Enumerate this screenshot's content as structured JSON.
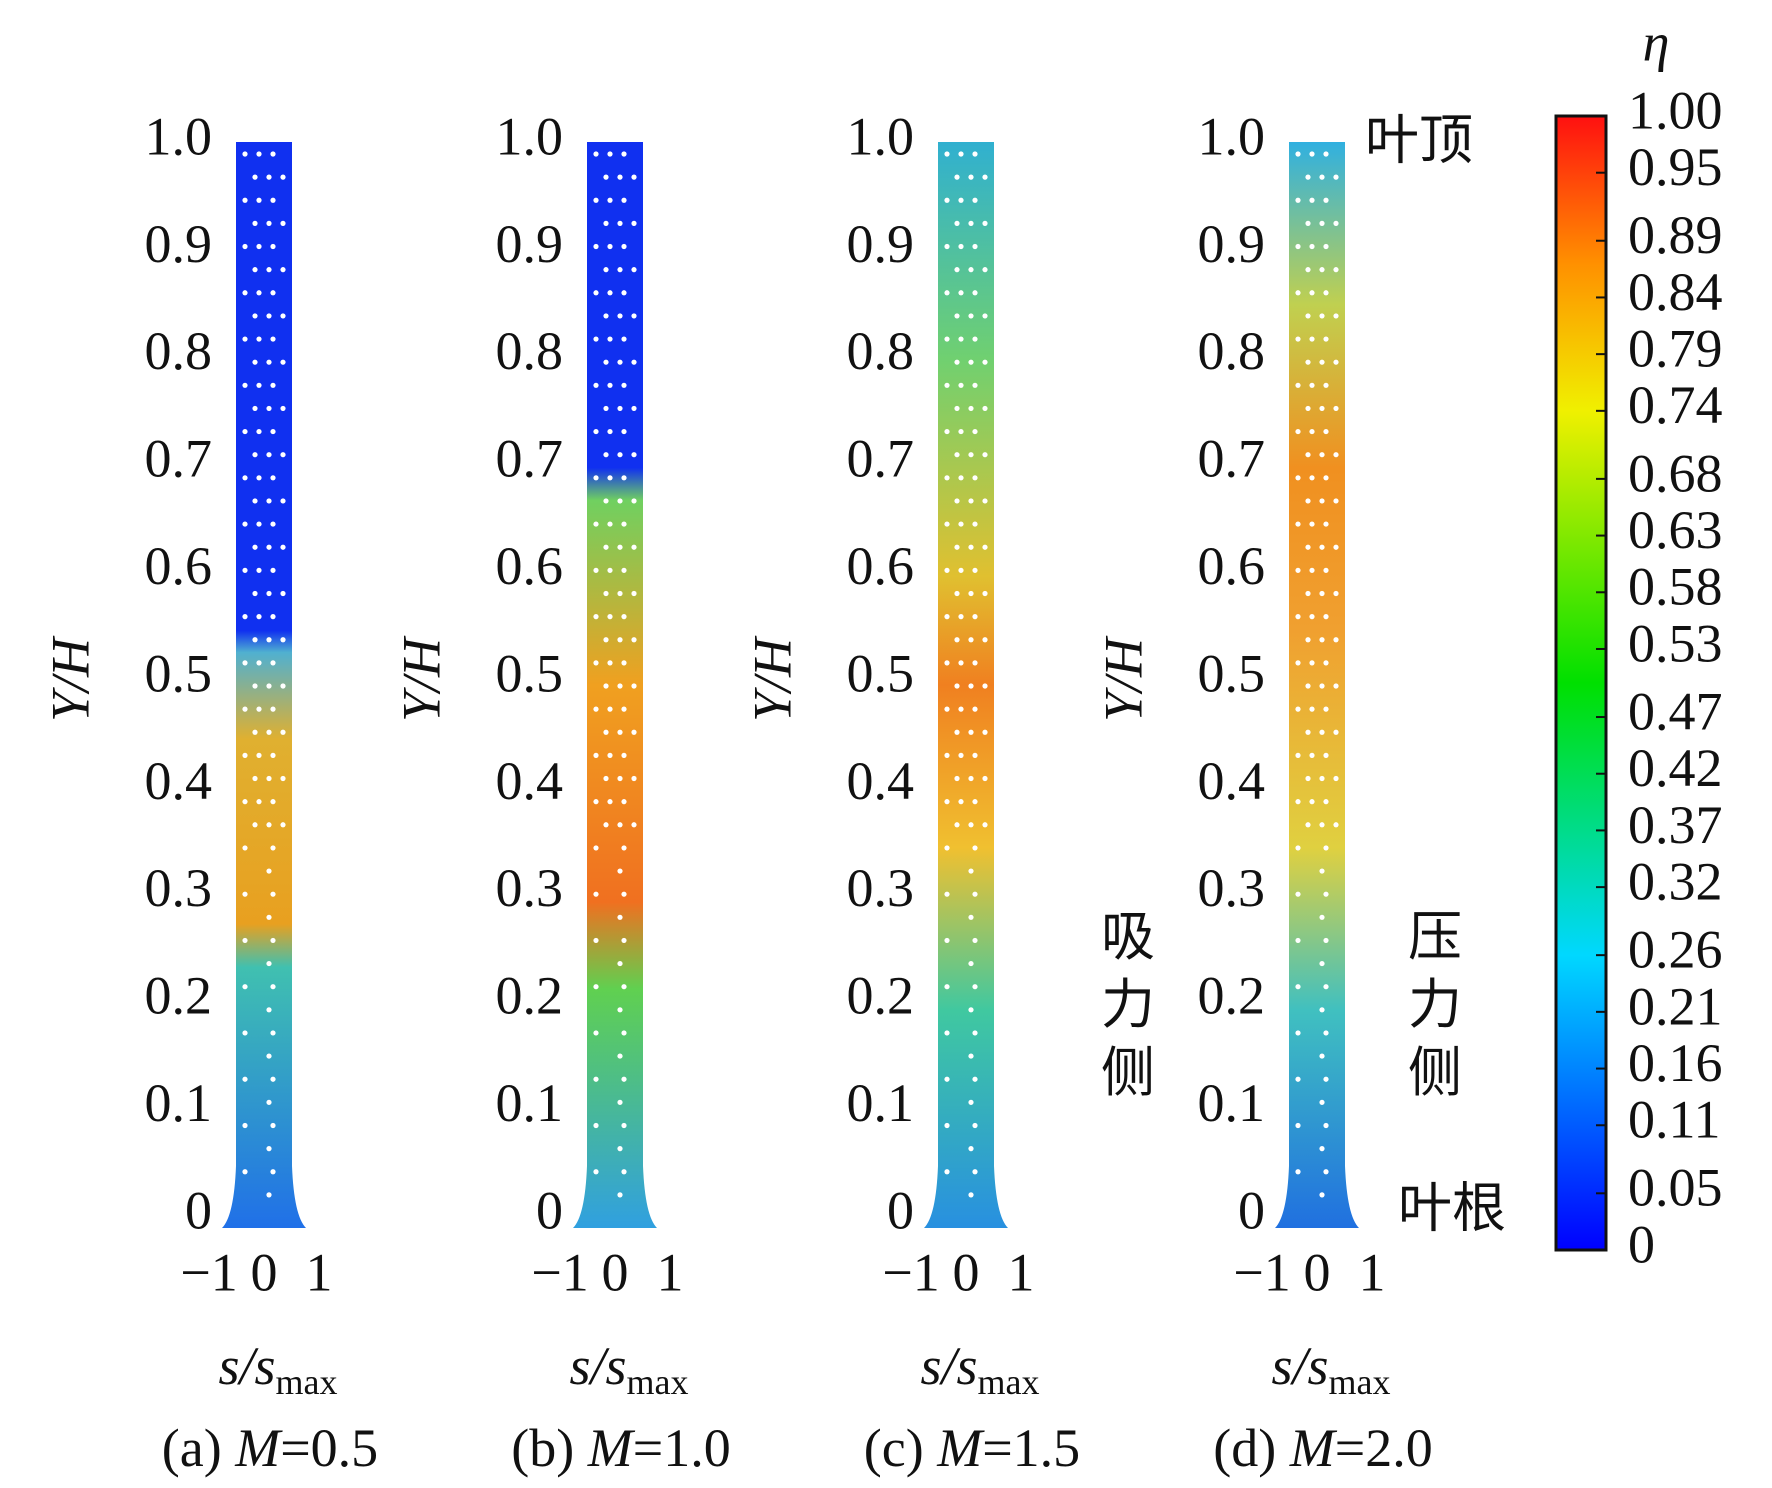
{
  "chart_data": [
    {
      "type": "contour",
      "caption": [
        "(a) ",
        "M",
        "=0.5"
      ],
      "xlabel": {
        "main": "s/s",
        "sub": "max"
      },
      "ylabel": "Y/H",
      "xlim": [
        -1,
        1
      ],
      "xticks": [
        {
          "value": -1,
          "label": "−1"
        },
        0,
        1
      ],
      "ylim": [
        0,
        1
      ],
      "yticks": [
        0,
        0.1,
        0.2,
        0.3,
        0.4,
        0.5,
        0.6,
        0.7,
        0.8,
        0.9,
        {
          "value": 1,
          "label": "1.0"
        }
      ]
    },
    {
      "type": "contour",
      "caption": [
        "(b) ",
        "M",
        "=1.0"
      ],
      "xlabel": {
        "main": "s/s",
        "sub": "max"
      },
      "ylabel": "Y/H",
      "xlim": [
        -1,
        1
      ],
      "xticks": [
        {
          "value": -1,
          "label": "−1"
        },
        0,
        1
      ],
      "ylim": [
        0,
        1
      ],
      "yticks": [
        0,
        0.1,
        0.2,
        0.3,
        0.4,
        0.5,
        0.6,
        0.7,
        0.8,
        0.9,
        {
          "value": 1,
          "label": "1.0"
        }
      ]
    },
    {
      "type": "contour",
      "caption": [
        "(c) ",
        "M",
        "=1.5"
      ],
      "xlabel": {
        "main": "s/s",
        "sub": "max"
      },
      "ylabel": "Y/H",
      "xlim": [
        -1,
        1
      ],
      "xticks": [
        {
          "value": -1,
          "label": "−1"
        },
        0,
        1
      ],
      "ylim": [
        0,
        1
      ],
      "yticks": [
        0,
        0.1,
        0.2,
        0.3,
        0.4,
        0.5,
        0.6,
        0.7,
        0.8,
        0.9,
        {
          "value": 1,
          "label": "1.0"
        }
      ]
    },
    {
      "type": "contour",
      "caption": [
        "(d) ",
        "M",
        "=2.0"
      ],
      "xlabel": {
        "main": "s/s",
        "sub": "max"
      },
      "ylabel": "Y/H",
      "xlim": [
        -1,
        1
      ],
      "xticks": [
        {
          "value": -1,
          "label": "−1"
        },
        0,
        1
      ],
      "ylim": [
        0,
        1
      ],
      "yticks": [
        0,
        0.1,
        0.2,
        0.3,
        0.4,
        0.5,
        0.6,
        0.7,
        0.8,
        0.9,
        {
          "value": 1,
          "label": "1.0"
        }
      ]
    },
    {
      "type": "colorbar",
      "label": "η",
      "colormap": "jet",
      "lim": [
        0,
        1
      ],
      "ticks": [
        0,
        0.05,
        0.11,
        0.16,
        0.21,
        0.26,
        0.32,
        0.37,
        0.42,
        0.47,
        0.53,
        0.58,
        0.63,
        0.68,
        0.74,
        0.79,
        0.84,
        0.89,
        0.95,
        {
          "value": 1,
          "label": "1.00"
        }
      ],
      "annotations": [
        "叶顶",
        "叶根",
        "吸力侧",
        "压力侧"
      ]
    }
  ]
}
